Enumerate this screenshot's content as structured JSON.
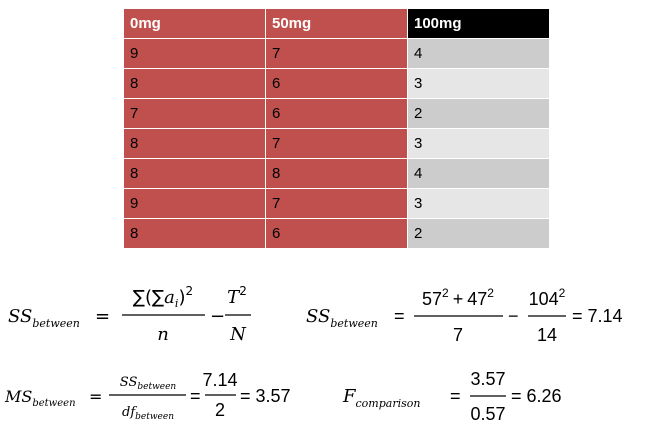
{
  "table": {
    "header": [
      "0mg",
      "50mg",
      "100mg"
    ],
    "rows": [
      [
        "9",
        "7",
        "4"
      ],
      [
        "8",
        "6",
        "3"
      ],
      [
        "7",
        "6",
        "2"
      ],
      [
        "8",
        "7",
        "3"
      ],
      [
        "8",
        "8",
        "4"
      ],
      [
        "9",
        "7",
        "3"
      ],
      [
        "8",
        "6",
        "2"
      ]
    ]
  },
  "formula_1": {
    "lhs": "SS",
    "lhs_sub": "between",
    "eq": "=",
    "num1": "∑(∑",
    "num1_var": "a",
    "num1_sub": "i",
    "num1_close": ")",
    "num1_exp": "2",
    "den1": "n",
    "minus": "−",
    "num2": "T",
    "num2_exp": "2",
    "den2": "N"
  },
  "formula_2": {
    "lhs": "SS",
    "lhs_sub": "between",
    "eq": "=",
    "num1_a": "57",
    "exp_a": "2",
    "plus": "+",
    "num1_b": "47",
    "exp_b": "2",
    "den1": "7",
    "minus": "−",
    "num2": "104",
    "num2_exp": "2",
    "den2": "14",
    "eq2": "=",
    "result": "7.14"
  },
  "formula_3": {
    "lhs": "MS",
    "lhs_sub": "between",
    "eq": "=",
    "num": "SS",
    "num_sub": "between",
    "den": "df",
    "den_sub": "between",
    "eq2": "=",
    "num2": "7.14",
    "den2": "2",
    "eq3": "=",
    "result": "3.57"
  },
  "formula_4": {
    "lhs": "F",
    "lhs_sub": "comparison",
    "eq": "=",
    "num": "3.57",
    "den": "0.57",
    "eq2": "=",
    "result": "6.26"
  }
}
